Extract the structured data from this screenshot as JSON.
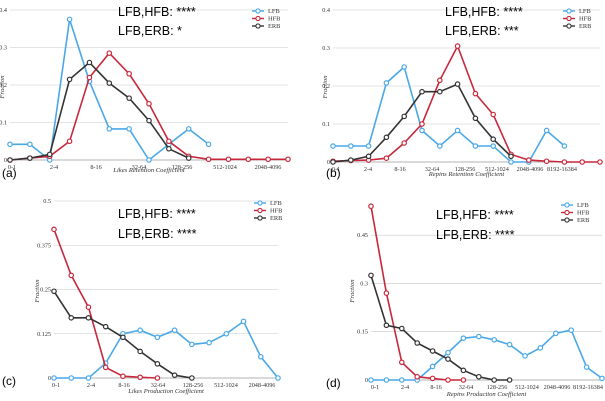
{
  "colors": {
    "LFB": "#4aa8e8",
    "HFB": "#c8283c",
    "ERB": "#333333"
  },
  "chart_data": [
    {
      "type": "line",
      "panel_label": "(a)",
      "annotations": [
        "LFB,HFB: ****",
        "LFB,ERB: *"
      ],
      "xlabel": "Likes Retention Coefficient",
      "ylabel": "Fraction",
      "x_tick_labels": [
        "0-1",
        "2-4",
        "8-16",
        "32-64",
        "128-256",
        "512-1024",
        "2048-4096"
      ],
      "y_tick_labels": [
        "0",
        "0.1",
        "0.2",
        "0.3",
        "0.4"
      ],
      "ylim": [
        0,
        0.4
      ],
      "legend": [
        "LFB",
        "HFB",
        "ERB"
      ],
      "legend_position": "top-right",
      "grid": true,
      "series": [
        {
          "name": "LFB",
          "x": [
            0,
            1,
            2,
            3,
            4,
            5,
            6,
            7,
            8,
            9,
            10
          ],
          "y": [
            0.042,
            0.042,
            0.0,
            0.375,
            0.21,
            0.083,
            0.083,
            0.0,
            0.042,
            0.083,
            0.042
          ]
        },
        {
          "name": "HFB",
          "x": [
            0,
            1,
            2,
            3,
            4,
            5,
            6,
            7,
            8,
            9,
            10,
            11,
            12,
            13,
            14
          ],
          "y": [
            0.0,
            0.005,
            0.01,
            0.05,
            0.22,
            0.285,
            0.23,
            0.15,
            0.05,
            0.01,
            0.002,
            0.002,
            0.002,
            0.002,
            0.002
          ]
        },
        {
          "name": "ERB",
          "x": [
            0,
            1,
            2,
            3,
            4,
            5,
            6,
            7,
            8,
            9
          ],
          "y": [
            0.0,
            0.005,
            0.015,
            0.215,
            0.26,
            0.205,
            0.165,
            0.105,
            0.03,
            0.005
          ]
        }
      ]
    },
    {
      "type": "line",
      "panel_label": "(b)",
      "annotations": [
        "LFB,HFB: ****",
        "LFB,ERB: ***"
      ],
      "xlabel": "Repins Retention Coefficient",
      "ylabel": "Fraction",
      "x_tick_labels": [
        "0-1",
        "2-4",
        "8-16",
        "32-64",
        "128-256",
        "512-1024",
        "2048-4096",
        "8192-16384"
      ],
      "y_tick_labels": [
        "0",
        "0.1",
        "0.2",
        "0.3",
        "0.4"
      ],
      "ylim": [
        0,
        0.4
      ],
      "legend": [
        "LFB",
        "HFB",
        "ERB"
      ],
      "legend_position": "top-right",
      "grid": true,
      "series": [
        {
          "name": "LFB",
          "x": [
            0,
            1,
            2,
            3,
            4,
            5,
            6,
            7,
            8,
            9,
            10,
            11,
            12,
            13
          ],
          "y": [
            0.042,
            0.042,
            0.042,
            0.208,
            0.25,
            0.083,
            0.042,
            0.083,
            0.042,
            0.042,
            0.0,
            0.0,
            0.083,
            0.042
          ]
        },
        {
          "name": "HFB",
          "x": [
            0,
            1,
            2,
            3,
            4,
            5,
            6,
            7,
            8,
            9,
            10,
            11,
            12,
            13,
            14,
            15
          ],
          "y": [
            0.002,
            0.004,
            0.005,
            0.01,
            0.05,
            0.1,
            0.215,
            0.305,
            0.18,
            0.125,
            0.02,
            0.005,
            0.002,
            0.0,
            0.0,
            0.0
          ]
        },
        {
          "name": "ERB",
          "x": [
            0,
            1,
            2,
            3,
            4,
            5,
            6,
            7,
            8,
            9,
            10
          ],
          "y": [
            0.0,
            0.005,
            0.015,
            0.065,
            0.12,
            0.185,
            0.185,
            0.205,
            0.115,
            0.06,
            0.015
          ]
        }
      ]
    },
    {
      "type": "line",
      "panel_label": "(c)",
      "annotations": [
        "LFB,HFB: ****",
        "LFB,ERB: ****"
      ],
      "xlabel": "Likes Production Coefficient",
      "ylabel": "Fraction",
      "x_tick_labels": [
        "0-1",
        "2-4",
        "8-16",
        "32-64",
        "128-256",
        "512-1024",
        "2048-4096"
      ],
      "y_tick_labels": [
        "0",
        "0.125",
        "0.25",
        "0.375",
        "0.5"
      ],
      "ylim": [
        0,
        0.5
      ],
      "legend": [
        "LFB",
        "HFB",
        "ERB"
      ],
      "legend_position": "top-right",
      "grid": true,
      "series": [
        {
          "name": "LFB",
          "x": [
            0,
            1,
            2,
            3,
            4,
            5,
            6,
            7,
            8,
            9,
            10,
            11,
            12,
            13
          ],
          "y": [
            0.0,
            0.0,
            0.0,
            0.042,
            0.125,
            0.135,
            0.115,
            0.135,
            0.095,
            0.1,
            0.125,
            0.16,
            0.06,
            0.0
          ]
        },
        {
          "name": "HFB",
          "x": [
            0,
            1,
            2,
            3,
            4,
            5,
            6
          ],
          "y": [
            0.42,
            0.29,
            0.2,
            0.03,
            0.005,
            0.002,
            0.0
          ]
        },
        {
          "name": "ERB",
          "x": [
            0,
            1,
            2,
            3,
            4,
            5,
            6,
            7,
            8
          ],
          "y": [
            0.245,
            0.17,
            0.17,
            0.145,
            0.115,
            0.075,
            0.04,
            0.008,
            0.0
          ]
        }
      ]
    },
    {
      "type": "line",
      "panel_label": "(d)",
      "annotations": [
        "LFB,HFB: ****",
        "LFB,ERB: ****"
      ],
      "xlabel": "Repins Production Coefficient",
      "ylabel": "Fraction",
      "x_tick_labels": [
        "0-1",
        "2-4",
        "8-16",
        "32-64",
        "128-256",
        "512-1024",
        "2048-4096",
        "8192-16384"
      ],
      "y_tick_labels": [
        "0",
        "0.15",
        "0.3",
        "0.45"
      ],
      "ylim": [
        0,
        0.55
      ],
      "legend": [
        "LFB",
        "HFB",
        "ERB"
      ],
      "legend_position": "top-right",
      "grid": true,
      "series": [
        {
          "name": "LFB",
          "x": [
            0,
            1,
            2,
            3,
            4,
            5,
            6,
            7,
            8,
            9,
            10,
            11,
            12,
            13,
            14,
            15
          ],
          "y": [
            0.0,
            0.0,
            0.0,
            0.0,
            0.042,
            0.085,
            0.13,
            0.135,
            0.125,
            0.11,
            0.075,
            0.1,
            0.145,
            0.155,
            0.04,
            0.005
          ]
        },
        {
          "name": "HFB",
          "x": [
            0,
            1,
            2,
            3,
            4,
            5,
            6
          ],
          "y": [
            0.54,
            0.27,
            0.055,
            0.01,
            0.005,
            0.0,
            0.0
          ]
        },
        {
          "name": "ERB",
          "x": [
            0,
            1,
            2,
            3,
            4,
            5,
            6,
            7,
            8,
            9
          ],
          "y": [
            0.325,
            0.17,
            0.16,
            0.115,
            0.09,
            0.065,
            0.03,
            0.01,
            0.0,
            0.0
          ]
        }
      ]
    }
  ]
}
